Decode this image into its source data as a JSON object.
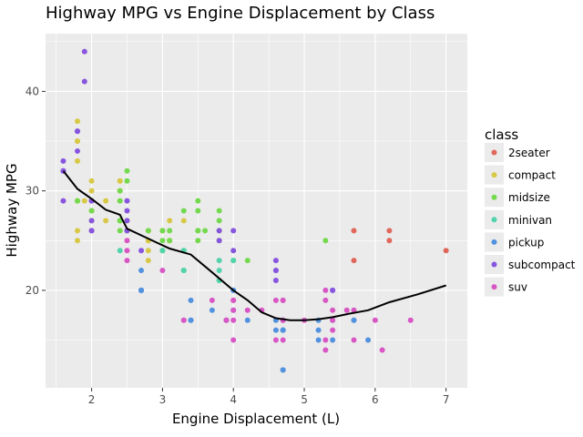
{
  "chart_data": {
    "type": "scatter",
    "title": "Highway MPG vs Engine Displacement by Class",
    "xlabel": "Engine Displacement (L)",
    "ylabel": "Highway MPG",
    "xlim": [
      1.35,
      7.3
    ],
    "ylim": [
      10.2,
      45.8
    ],
    "xticks": [
      2,
      3,
      4,
      5,
      6,
      7
    ],
    "yticks": [
      20,
      30,
      40
    ],
    "grid": true,
    "legend_position": "right",
    "legend_title": "class",
    "series": [
      {
        "name": "2seater",
        "color": "#e0675c",
        "points": [
          [
            5.7,
            26
          ],
          [
            5.7,
            23
          ],
          [
            6.2,
            26
          ],
          [
            6.2,
            25
          ],
          [
            7.0,
            24
          ]
        ]
      },
      {
        "name": "compact",
        "color": "#d8c848",
        "points": [
          [
            1.8,
            29
          ],
          [
            1.8,
            29
          ],
          [
            2.0,
            31
          ],
          [
            2.0,
            30
          ],
          [
            2.8,
            26
          ],
          [
            2.8,
            26
          ],
          [
            3.1,
            27
          ],
          [
            1.8,
            26
          ],
          [
            1.8,
            25
          ],
          [
            2.0,
            28
          ],
          [
            2.0,
            27
          ],
          [
            2.8,
            25
          ],
          [
            2.8,
            25
          ],
          [
            3.1,
            25
          ],
          [
            3.1,
            25
          ],
          [
            1.8,
            35
          ],
          [
            1.8,
            37
          ],
          [
            1.8,
            35
          ],
          [
            1.8,
            33
          ],
          [
            2.2,
            29
          ],
          [
            2.2,
            27
          ],
          [
            2.4,
            31
          ],
          [
            2.4,
            31
          ],
          [
            3.0,
            26
          ],
          [
            3.0,
            26
          ],
          [
            3.3,
            27
          ],
          [
            2.4,
            29
          ],
          [
            2.4,
            30
          ],
          [
            2.4,
            27
          ],
          [
            2.5,
            27
          ],
          [
            2.5,
            26
          ],
          [
            2.8,
            24
          ],
          [
            2.8,
            23
          ],
          [
            1.9,
            29
          ],
          [
            2.0,
            29
          ],
          [
            2.0,
            28
          ]
        ]
      },
      {
        "name": "midsize",
        "color": "#74d94f",
        "points": [
          [
            2.4,
            26
          ],
          [
            2.4,
            27
          ],
          [
            3.1,
            26
          ],
          [
            3.5,
            29
          ],
          [
            3.6,
            26
          ],
          [
            2.4,
            30
          ],
          [
            3.0,
            26
          ],
          [
            3.3,
            28
          ],
          [
            3.3,
            24
          ],
          [
            3.5,
            26
          ],
          [
            3.8,
            26
          ],
          [
            3.8,
            27
          ],
          [
            3.8,
            28
          ],
          [
            2.5,
            32
          ],
          [
            2.5,
            31
          ],
          [
            2.5,
            26
          ],
          [
            3.5,
            25
          ],
          [
            3.0,
            25
          ],
          [
            3.5,
            28
          ],
          [
            4.2,
            23
          ],
          [
            2.4,
            29
          ],
          [
            2.4,
            27
          ],
          [
            3.0,
            24
          ],
          [
            3.5,
            26
          ],
          [
            2.0,
            28
          ],
          [
            1.8,
            29
          ],
          [
            2.8,
            26
          ],
          [
            3.0,
            24
          ],
          [
            5.3,
            25
          ],
          [
            3.1,
            25
          ],
          [
            3.8,
            25
          ],
          [
            3.8,
            21
          ],
          [
            4.0,
            23
          ]
        ]
      },
      {
        "name": "minivan",
        "color": "#52d3ac",
        "points": [
          [
            2.4,
            24
          ],
          [
            3.0,
            24
          ],
          [
            3.3,
            22
          ],
          [
            3.3,
            22
          ],
          [
            3.3,
            24
          ],
          [
            3.3,
            24
          ],
          [
            3.3,
            22
          ],
          [
            3.8,
            22
          ],
          [
            3.8,
            21
          ],
          [
            3.8,
            23
          ],
          [
            4.0,
            23
          ]
        ]
      },
      {
        "name": "pickup",
        "color": "#5292de",
        "points": [
          [
            2.7,
            20
          ],
          [
            2.7,
            20
          ],
          [
            2.7,
            22
          ],
          [
            3.4,
            17
          ],
          [
            3.4,
            19
          ],
          [
            4.0,
            18
          ],
          [
            4.0,
            20
          ],
          [
            4.2,
            17
          ],
          [
            4.6,
            16
          ],
          [
            4.6,
            17
          ],
          [
            4.7,
            17
          ],
          [
            4.7,
            16
          ],
          [
            4.7,
            12
          ],
          [
            5.2,
            15
          ],
          [
            5.2,
            16
          ],
          [
            5.4,
            17
          ],
          [
            5.7,
            17
          ],
          [
            3.7,
            18
          ],
          [
            3.9,
            17
          ],
          [
            4.7,
            16
          ],
          [
            4.7,
            12
          ],
          [
            5.2,
            17
          ],
          [
            5.7,
            17
          ],
          [
            5.9,
            15
          ],
          [
            4.7,
            16
          ],
          [
            5.4,
            15
          ],
          [
            4.0,
            20
          ],
          [
            2.7,
            20
          ],
          [
            2.7,
            20
          ],
          [
            3.4,
            17
          ]
        ]
      },
      {
        "name": "subcompact",
        "color": "#8755de",
        "points": [
          [
            1.6,
            33
          ],
          [
            1.6,
            32
          ],
          [
            1.6,
            32
          ],
          [
            1.6,
            29
          ],
          [
            1.6,
            32
          ],
          [
            1.8,
            34
          ],
          [
            1.8,
            36
          ],
          [
            1.8,
            36
          ],
          [
            2.0,
            29
          ],
          [
            2.0,
            26
          ],
          [
            2.0,
            27
          ],
          [
            1.9,
            44
          ],
          [
            1.9,
            41
          ],
          [
            2.0,
            29
          ],
          [
            2.0,
            26
          ],
          [
            2.5,
            29
          ],
          [
            2.5,
            27
          ],
          [
            2.5,
            28
          ],
          [
            2.5,
            26
          ],
          [
            2.7,
            24
          ],
          [
            3.8,
            26
          ],
          [
            3.8,
            25
          ],
          [
            4.0,
            26
          ],
          [
            4.0,
            24
          ],
          [
            4.6,
            21
          ],
          [
            4.6,
            22
          ],
          [
            4.6,
            23
          ],
          [
            5.4,
            20
          ],
          [
            4.6,
            22
          ],
          [
            5.4,
            20
          ]
        ]
      },
      {
        "name": "suv",
        "color": "#d857c5",
        "points": [
          [
            2.5,
            24
          ],
          [
            2.5,
            25
          ],
          [
            2.5,
            23
          ],
          [
            3.0,
            22
          ],
          [
            3.7,
            19
          ],
          [
            3.9,
            17
          ],
          [
            4.0,
            17
          ],
          [
            4.0,
            19
          ],
          [
            4.0,
            19
          ],
          [
            4.0,
            18
          ],
          [
            4.2,
            18
          ],
          [
            4.4,
            18
          ],
          [
            4.6,
            19
          ],
          [
            4.6,
            15
          ],
          [
            4.7,
            17
          ],
          [
            4.7,
            19
          ],
          [
            5.0,
            17
          ],
          [
            5.3,
            20
          ],
          [
            5.3,
            19
          ],
          [
            5.3,
            15
          ],
          [
            5.4,
            17
          ],
          [
            5.4,
            18
          ],
          [
            5.6,
            18
          ],
          [
            5.7,
            18
          ],
          [
            5.7,
            15
          ],
          [
            6.0,
            17
          ],
          [
            6.1,
            14
          ],
          [
            6.5,
            17
          ],
          [
            5.3,
            14
          ],
          [
            5.4,
            16
          ],
          [
            4.7,
            15
          ],
          [
            4.0,
            15
          ],
          [
            3.3,
            17
          ],
          [
            3.3,
            17
          ],
          [
            3.9,
            17
          ],
          [
            4.7,
            19
          ],
          [
            4.7,
            17
          ]
        ]
      }
    ],
    "trend": {
      "color": "#000000",
      "points": [
        [
          1.6,
          32
        ],
        [
          1.8,
          30.2
        ],
        [
          2.0,
          29.2
        ],
        [
          2.2,
          28.1
        ],
        [
          2.4,
          27.6
        ],
        [
          2.5,
          26.2
        ],
        [
          2.8,
          25.2
        ],
        [
          3.1,
          24.2
        ],
        [
          3.4,
          23.6
        ],
        [
          3.7,
          21.8
        ],
        [
          4.0,
          20.0
        ],
        [
          4.2,
          19.0
        ],
        [
          4.4,
          17.8
        ],
        [
          4.6,
          17.2
        ],
        [
          4.8,
          17.0
        ],
        [
          5.0,
          17.0
        ],
        [
          5.2,
          17.1
        ],
        [
          5.4,
          17.3
        ],
        [
          5.6,
          17.6
        ],
        [
          5.9,
          18.0
        ],
        [
          6.2,
          18.8
        ],
        [
          6.6,
          19.6
        ],
        [
          7.0,
          20.5
        ]
      ]
    }
  }
}
